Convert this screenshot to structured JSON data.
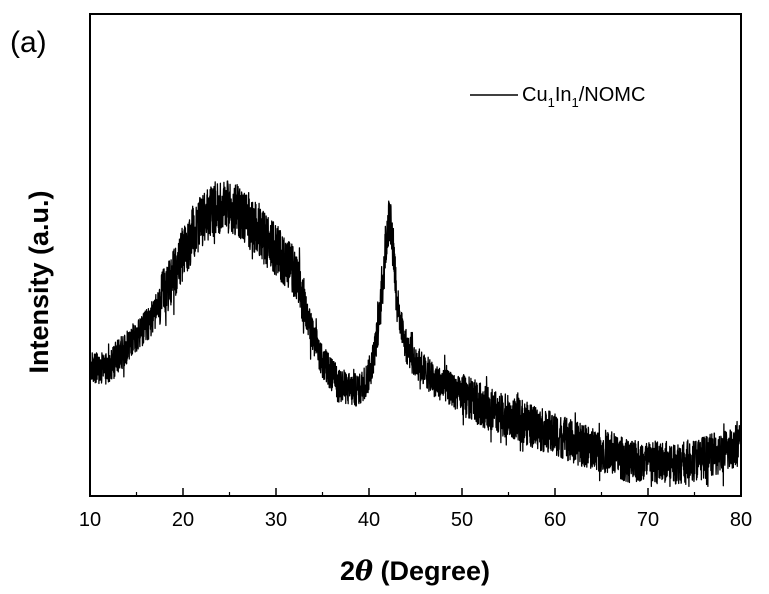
{
  "panel_label": "(a)",
  "chart_data": {
    "type": "line",
    "title": "",
    "xlabel_prefix": "2",
    "xlabel_symbol": "θ",
    "xlabel_suffix": " (Degree)",
    "ylabel": "Intensity (a.u.)",
    "xlim": [
      10,
      80
    ],
    "ylim": [
      0,
      1
    ],
    "y_ticks_labeled": false,
    "x_ticks": [
      10,
      20,
      30,
      40,
      50,
      60,
      70,
      80
    ],
    "x_tick_labels": [
      "10",
      "20",
      "30",
      "40",
      "50",
      "60",
      "70",
      "80"
    ],
    "grid": false,
    "legend_position": "top-right",
    "line_color": "#000000",
    "series": [
      {
        "name_parts": [
          "Cu",
          "1",
          "In",
          "1",
          "/NOMC"
        ],
        "x": [
          10,
          11,
          12,
          13,
          14,
          15,
          16,
          17,
          18,
          19,
          20,
          21,
          22,
          23,
          24,
          25,
          26,
          27,
          28,
          29,
          30,
          31,
          32,
          33,
          34,
          35,
          36,
          37,
          38,
          39,
          40,
          40.5,
          41,
          41.5,
          42,
          42.3,
          42.6,
          43,
          43.5,
          44,
          45,
          46,
          47,
          48,
          49,
          50,
          52,
          54,
          56,
          58,
          60,
          62,
          64,
          66,
          68,
          70,
          72,
          74,
          76,
          78,
          80
        ],
        "y": [
          0.27,
          0.26,
          0.27,
          0.29,
          0.31,
          0.33,
          0.35,
          0.38,
          0.42,
          0.46,
          0.5,
          0.54,
          0.57,
          0.59,
          0.6,
          0.6,
          0.59,
          0.57,
          0.55,
          0.53,
          0.51,
          0.49,
          0.46,
          0.4,
          0.33,
          0.28,
          0.25,
          0.23,
          0.22,
          0.22,
          0.25,
          0.29,
          0.35,
          0.45,
          0.56,
          0.58,
          0.52,
          0.41,
          0.35,
          0.31,
          0.28,
          0.26,
          0.24,
          0.23,
          0.22,
          0.21,
          0.19,
          0.17,
          0.16,
          0.14,
          0.13,
          0.11,
          0.1,
          0.09,
          0.07,
          0.07,
          0.07,
          0.07,
          0.08,
          0.09,
          0.11
        ]
      }
    ]
  }
}
